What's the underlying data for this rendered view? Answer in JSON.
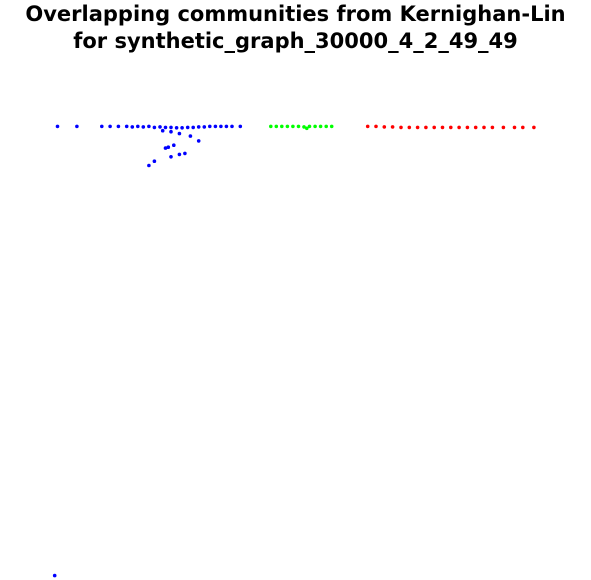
{
  "chart_data": {
    "type": "scatter",
    "title_lines": [
      "Overlapping communities from Kernighan-Lin",
      "for synthetic_graph_30000_4_2_49_49"
    ],
    "xlabel": "",
    "ylabel": "",
    "axes_visible": false,
    "grid": false,
    "legend": "none",
    "xlim": [
      0,
      100
    ],
    "ylim": [
      0,
      100
    ],
    "series": [
      {
        "color": "#0000ff",
        "points": [
          [
            5.5,
            93.5
          ],
          [
            9.0,
            93.5
          ],
          [
            13.5,
            93.5
          ],
          [
            15.0,
            93.5
          ],
          [
            16.5,
            93.5
          ],
          [
            18.0,
            93.5
          ],
          [
            19.0,
            93.4
          ],
          [
            20.0,
            93.5
          ],
          [
            21.0,
            93.4
          ],
          [
            22.0,
            93.5
          ],
          [
            23.0,
            93.3
          ],
          [
            24.0,
            93.4
          ],
          [
            25.0,
            93.3
          ],
          [
            26.0,
            93.3
          ],
          [
            27.0,
            93.2
          ],
          [
            28.0,
            93.2
          ],
          [
            29.0,
            93.3
          ],
          [
            30.0,
            93.3
          ],
          [
            31.0,
            93.4
          ],
          [
            32.0,
            93.4
          ],
          [
            33.0,
            93.5
          ],
          [
            34.0,
            93.5
          ],
          [
            35.0,
            93.5
          ],
          [
            36.0,
            93.5
          ],
          [
            37.0,
            93.5
          ],
          [
            38.5,
            93.5
          ],
          [
            24.5,
            92.6
          ],
          [
            26.0,
            92.4
          ],
          [
            27.5,
            92.0
          ],
          [
            29.5,
            91.5
          ],
          [
            31.0,
            90.5
          ],
          [
            26.5,
            89.6
          ],
          [
            25.5,
            89.2
          ],
          [
            25.0,
            89.0
          ],
          [
            27.5,
            87.7
          ],
          [
            28.5,
            87.9
          ],
          [
            26.0,
            87.2
          ],
          [
            23.0,
            86.3
          ],
          [
            22.0,
            85.4
          ],
          [
            5.0,
            0.5
          ]
        ]
      },
      {
        "color": "#00ff00",
        "points": [
          [
            44.0,
            93.5
          ],
          [
            45.0,
            93.5
          ],
          [
            46.0,
            93.5
          ],
          [
            47.0,
            93.5
          ],
          [
            48.0,
            93.5
          ],
          [
            49.0,
            93.5
          ],
          [
            50.0,
            93.4
          ],
          [
            51.0,
            93.5
          ],
          [
            52.0,
            93.5
          ],
          [
            53.0,
            93.5
          ],
          [
            54.0,
            93.5
          ],
          [
            55.0,
            93.5
          ],
          [
            50.5,
            93.1
          ]
        ]
      },
      {
        "color": "#ff0000",
        "points": [
          [
            61.5,
            93.5
          ],
          [
            63.0,
            93.5
          ],
          [
            64.5,
            93.4
          ],
          [
            66.0,
            93.4
          ],
          [
            67.5,
            93.3
          ],
          [
            69.0,
            93.3
          ],
          [
            70.5,
            93.3
          ],
          [
            72.0,
            93.3
          ],
          [
            73.5,
            93.3
          ],
          [
            75.0,
            93.3
          ],
          [
            76.5,
            93.3
          ],
          [
            78.0,
            93.3
          ],
          [
            79.5,
            93.3
          ],
          [
            81.0,
            93.3
          ],
          [
            82.5,
            93.3
          ],
          [
            84.0,
            93.3
          ],
          [
            86.0,
            93.3
          ],
          [
            88.0,
            93.3
          ],
          [
            89.5,
            93.3
          ],
          [
            91.5,
            93.3
          ]
        ]
      }
    ]
  }
}
